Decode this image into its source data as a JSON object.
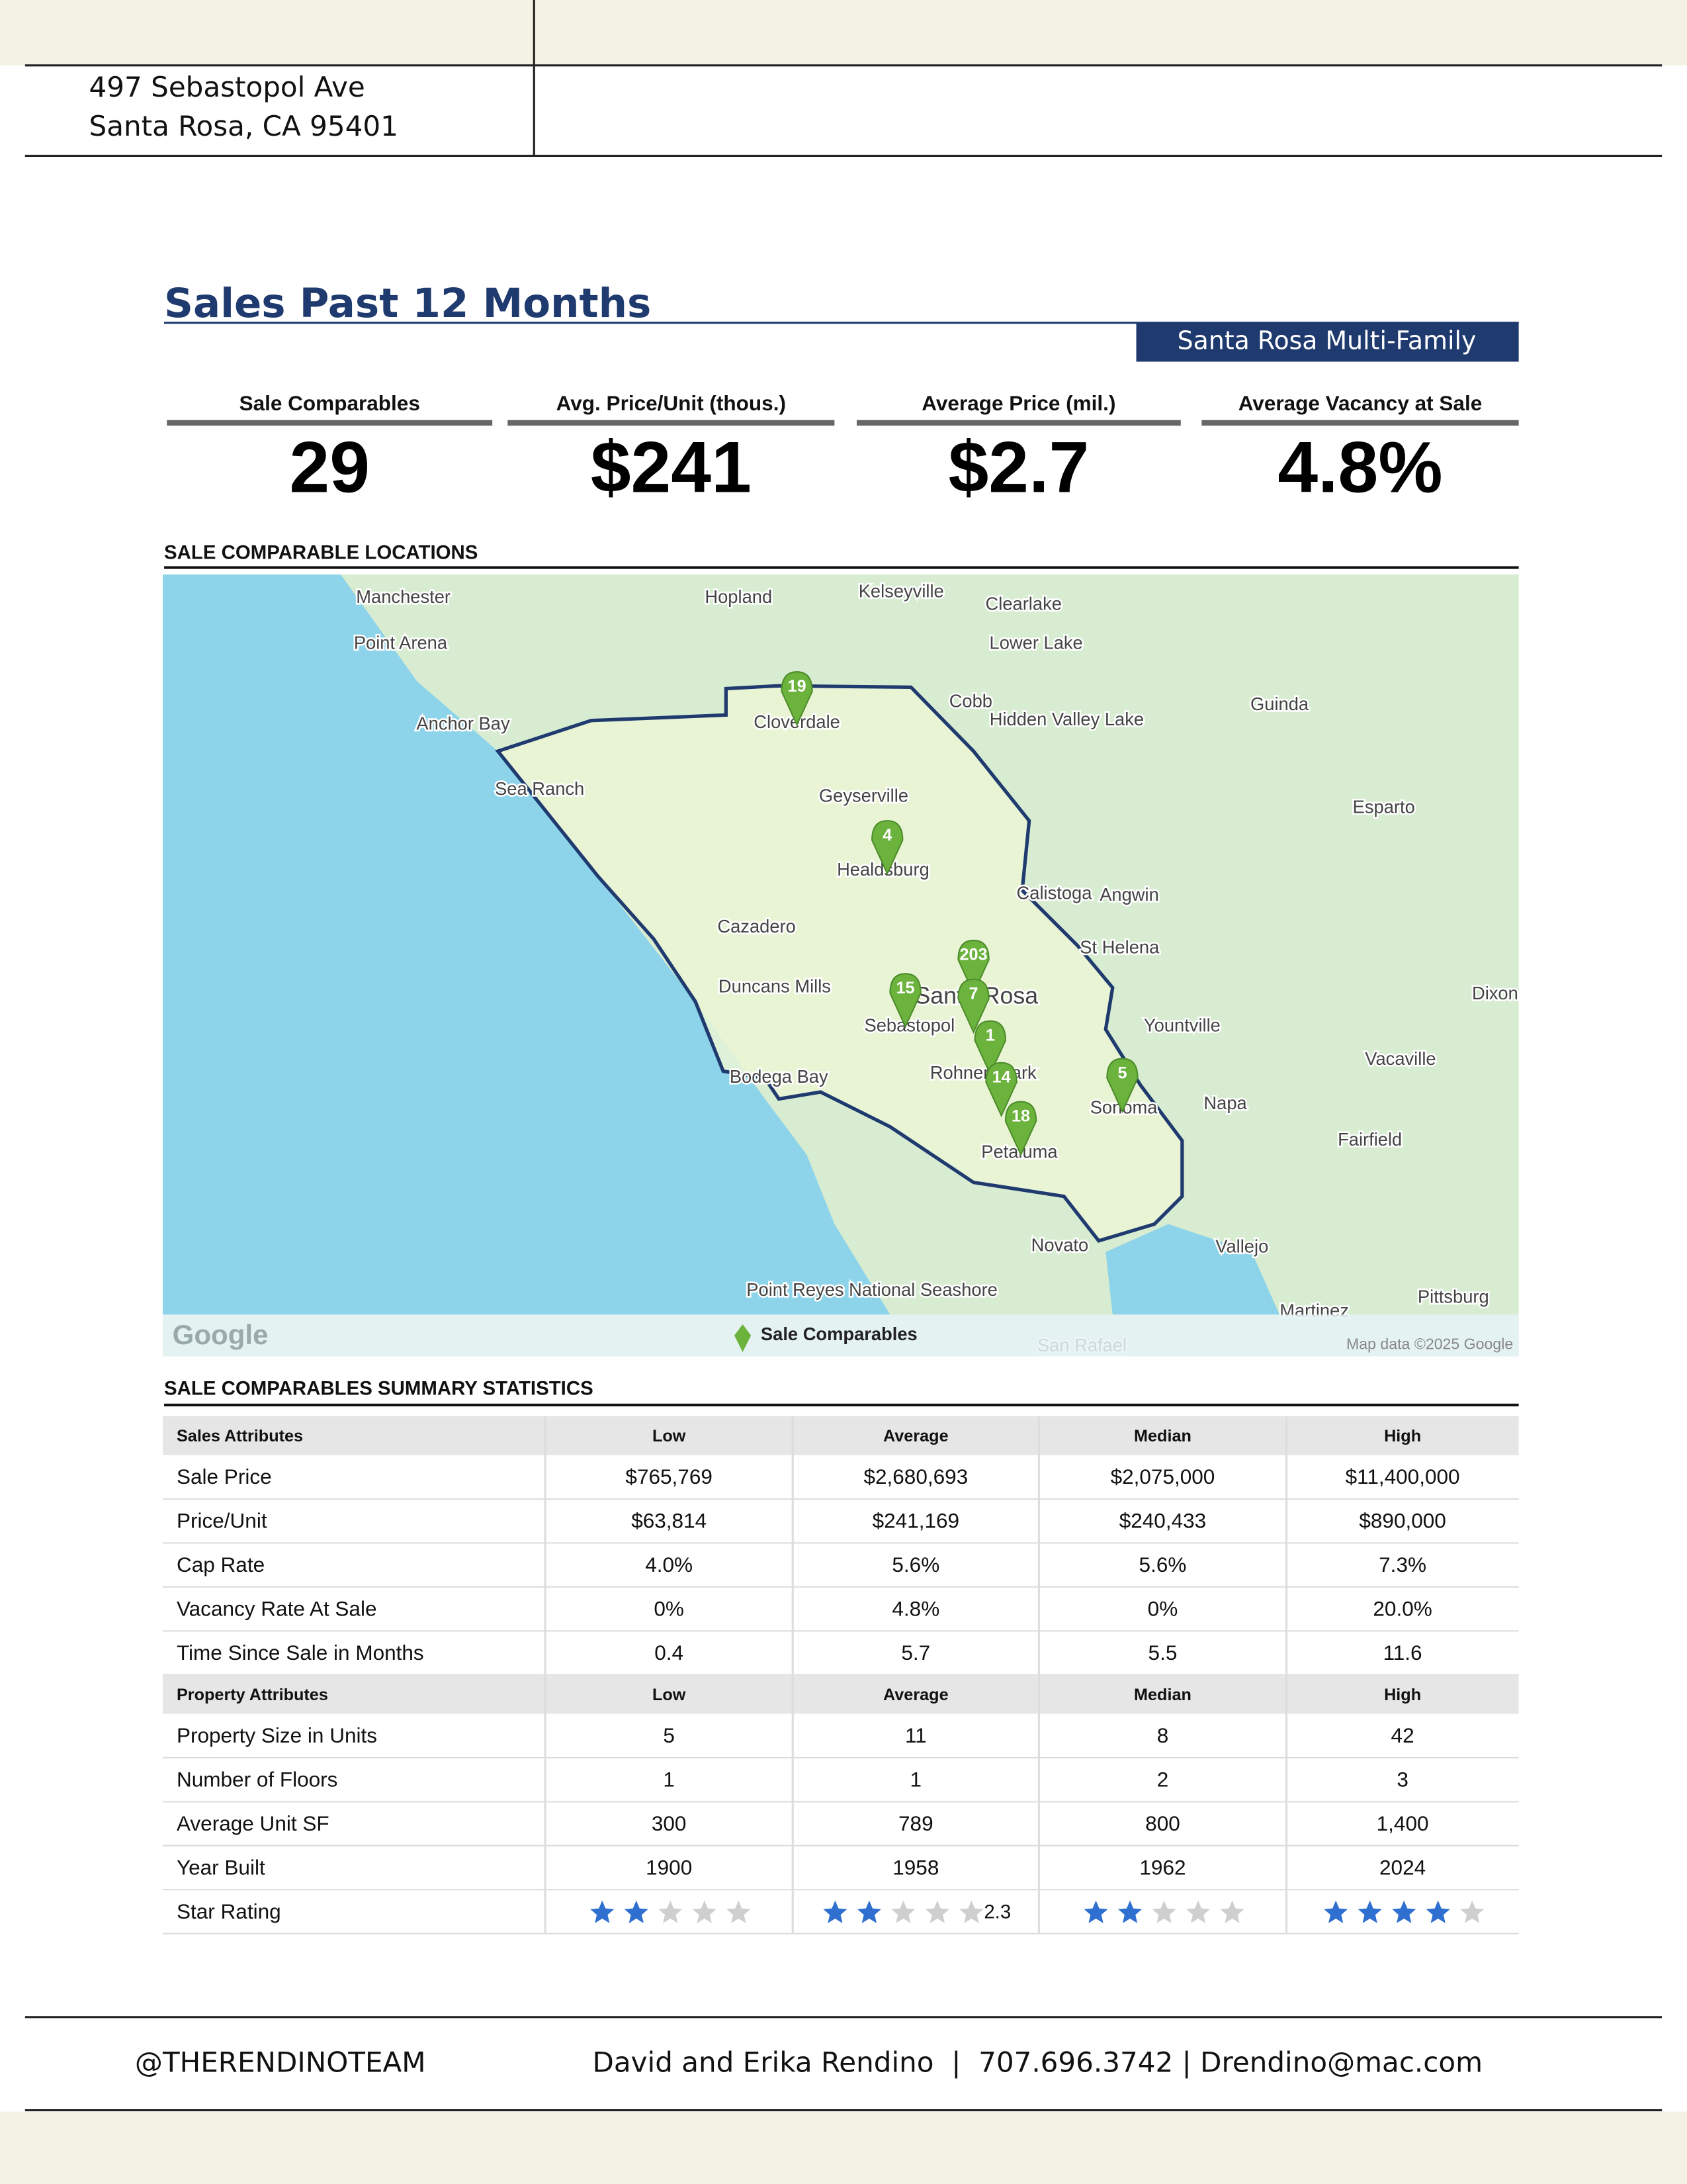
{
  "header": {
    "address": [
      "497 Sebastopol Ave",
      "Santa Rosa, CA 95401"
    ]
  },
  "title": "Sales Past 12 Months",
  "badge": "Santa Rosa Multi-Family",
  "stats": [
    {
      "label": "Sale Comparables",
      "value": "29"
    },
    {
      "label": "Avg. Price/Unit (thous.)",
      "value": "$241"
    },
    {
      "label": "Average Price (mil.)",
      "value": "$2.7"
    },
    {
      "label": "Average Vacancy at Sale",
      "value": "4.8%"
    }
  ],
  "map": {
    "title": "SALE COMPARABLE LOCATIONS",
    "places": [
      "Manchester",
      "Point Arena",
      "Anchor Bay",
      "Sea Ranch",
      "Hopland",
      "Kelseyville",
      "Clearlake",
      "Lower Lake",
      "Cobb",
      "Hidden Valley Lake",
      "Guinda",
      "Esparto",
      "Cloverdale",
      "Geyserville",
      "Healdsburg",
      "Cazadero",
      "Calistoga",
      "Angwin",
      "St Helena",
      "Duncans Mills",
      "Santa Rosa",
      "Sebastopol",
      "Yountville",
      "Rohnert Park",
      "Bodega Bay",
      "Sonoma",
      "Napa",
      "Vacaville",
      "Fairfield",
      "Petaluma",
      "Novato",
      "Vallejo",
      "Point Reyes National Seashore",
      "Martinez",
      "Pittsburg",
      "San Rafael",
      "Dixon"
    ],
    "markers": [
      "19",
      "4",
      "203",
      "7",
      "15",
      "1",
      "14",
      "18",
      "5"
    ],
    "legend": "Sale Comparables",
    "logo": "Google",
    "attribution": "Map data ©2025 Google"
  },
  "table": {
    "title": "SALE COMPARABLES SUMMARY STATISTICS",
    "sections": [
      {
        "header": [
          "Sales Attributes",
          "Low",
          "Average",
          "Median",
          "High"
        ],
        "rows": [
          [
            "Sale Price",
            "$765,769",
            "$2,680,693",
            "$2,075,000",
            "$11,400,000"
          ],
          [
            "Price/Unit",
            "$63,814",
            "$241,169",
            "$240,433",
            "$890,000"
          ],
          [
            "Cap Rate",
            "4.0%",
            "5.6%",
            "5.6%",
            "7.3%"
          ],
          [
            "Vacancy Rate At Sale",
            "0%",
            "4.8%",
            "0%",
            "20.0%"
          ],
          [
            "Time Since Sale in Months",
            "0.4",
            "5.7",
            "5.5",
            "11.6"
          ]
        ]
      },
      {
        "header": [
          "Property Attributes",
          "Low",
          "Average",
          "Median",
          "High"
        ],
        "rows": [
          [
            "Property Size in Units",
            "5",
            "11",
            "8",
            "42"
          ],
          [
            "Number of Floors",
            "1",
            "1",
            "2",
            "3"
          ],
          [
            "Average Unit SF",
            "300",
            "789",
            "800",
            "1,400"
          ],
          [
            "Year Built",
            "1900",
            "1958",
            "1962",
            "2024"
          ]
        ]
      }
    ],
    "star_rating": {
      "label": "Star Rating",
      "stars": [
        2,
        2,
        2,
        4
      ],
      "average_score": "2.3"
    }
  },
  "footer": {
    "handle": "@THERENDINOTEAM",
    "contact": "David and Erika Rendino  |  707.696.3742 | Drendino@mac.com"
  }
}
